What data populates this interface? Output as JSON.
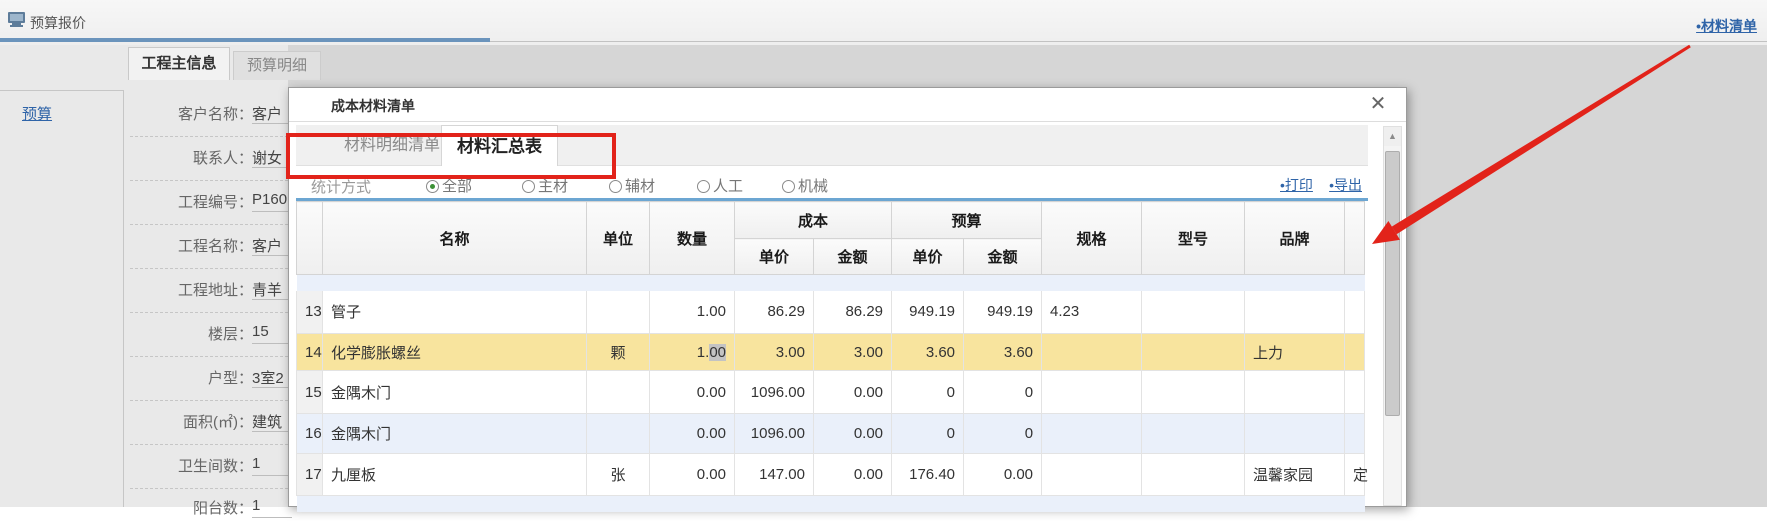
{
  "page": {
    "header": {
      "title": "预算报价",
      "link": "•材料清单"
    },
    "sidebar": {
      "link": "预算"
    },
    "tabs": [
      {
        "label": "工程主信息",
        "active": true
      },
      {
        "label": "预算明细",
        "active": false
      }
    ],
    "form": {
      "fields": [
        {
          "label": "客户名称：",
          "value": "客户",
          "underline": true
        },
        {
          "label": "联系人：",
          "value": "谢女",
          "underline": true
        },
        {
          "label": "工程编号：",
          "value": "P160",
          "underline": true
        },
        {
          "label": "工程名称：",
          "value": "客户",
          "underline": true
        },
        {
          "label": "工程地址：",
          "value": "青羊",
          "underline": true
        },
        {
          "label": "楼层：",
          "value": "15",
          "underline": true
        },
        {
          "label": "户型：",
          "value": "3室2",
          "underline": true
        },
        {
          "label": "面积(㎡)：",
          "value": "建筑",
          "underline": true
        },
        {
          "label": "卫生间数：",
          "value": "1",
          "underline": true
        },
        {
          "label": "阳台数：",
          "value": "1",
          "underline": true
        }
      ]
    }
  },
  "modal": {
    "title": "成本材料清单",
    "close_icon": "✕",
    "tabs": [
      {
        "label": "材料明细清单",
        "active": false
      },
      {
        "label": "材料汇总表",
        "active": true
      }
    ],
    "toolbar": {
      "stat_label": "统计方式",
      "radios": [
        {
          "label": "全部",
          "selected": true
        },
        {
          "label": "主材",
          "selected": false
        },
        {
          "label": "辅材",
          "selected": false
        },
        {
          "label": "人工",
          "selected": false
        },
        {
          "label": "机械",
          "selected": false
        }
      ],
      "links": [
        "•打印",
        "•导出"
      ]
    },
    "scroll_up_icon": "▲",
    "table": {
      "headers": {
        "name": "名称",
        "unit": "单位",
        "qty": "数量",
        "cost_group": "成本",
        "budget_group": "预算",
        "price": "单价",
        "amount": "金额",
        "spec": "规格",
        "model": "型号",
        "brand": "品牌"
      },
      "rows": [
        {
          "num": "13",
          "name": "管子",
          "unit": "",
          "qty": "1.00",
          "cost_price": "86.29",
          "cost_amount": "86.29",
          "budget_price": "949.19",
          "budget_amount": "949.19",
          "spec": "4.23",
          "model": "",
          "brand": "",
          "extra": "",
          "style": "white"
        },
        {
          "num": "14",
          "name": "化学膨胀螺丝",
          "unit": "颗",
          "qty_prefix": "1.",
          "qty_selected": "00",
          "cost_price": "3.00",
          "cost_amount": "3.00",
          "budget_price": "3.60",
          "budget_amount": "3.60",
          "spec": "",
          "model": "",
          "brand": "上力",
          "extra": "",
          "style": "yellow"
        },
        {
          "num": "15",
          "name": "金隅木门",
          "unit": "",
          "qty": "0.00",
          "cost_price": "1096.00",
          "cost_amount": "0.00",
          "budget_price": "0",
          "budget_amount": "0",
          "spec": "",
          "model": "",
          "brand": "",
          "extra": "",
          "style": "white"
        },
        {
          "num": "16",
          "name": "金隅木门",
          "unit": "",
          "qty": "0.00",
          "cost_price": "1096.00",
          "cost_amount": "0.00",
          "budget_price": "0",
          "budget_amount": "0",
          "spec": "",
          "model": "",
          "brand": "",
          "extra": "",
          "style": "blue"
        },
        {
          "num": "17",
          "name": "九厘板",
          "unit": "张",
          "qty": "0.00",
          "cost_price": "147.00",
          "cost_amount": "0.00",
          "budget_price": "176.40",
          "budget_amount": "0.00",
          "spec": "",
          "model": "",
          "brand": "温馨家园",
          "extra": "定",
          "style": "white"
        }
      ]
    }
  },
  "annotation_color": "#e2231a"
}
